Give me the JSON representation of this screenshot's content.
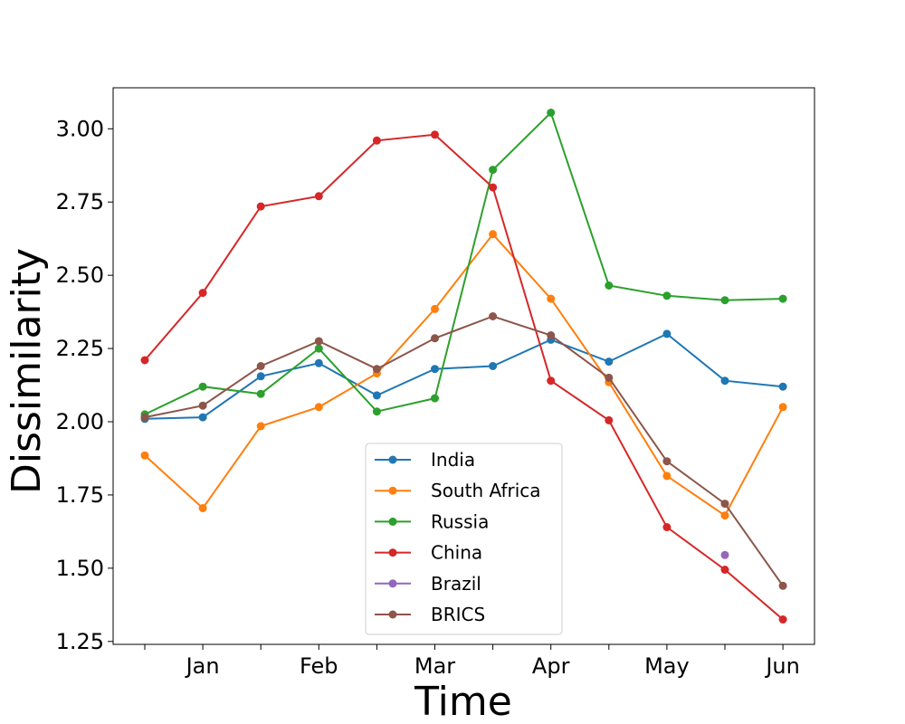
{
  "chart_data": {
    "type": "line",
    "title": "",
    "xlabel": "Time",
    "ylabel": "Dissimilarity",
    "x_tick_labels": [
      "Jan",
      "Feb",
      "Mar",
      "Apr",
      "May",
      "Jun"
    ],
    "y_tick_labels": [
      "1.25",
      "1.50",
      "1.75",
      "2.00",
      "2.25",
      "2.50",
      "2.75",
      "3.00"
    ],
    "x_points": 12,
    "ylim": [
      1.24,
      3.14
    ],
    "legend_position": "lower center",
    "grid": false,
    "series": [
      {
        "name": "India",
        "color": "#1f77b4",
        "values": [
          2.01,
          2.015,
          2.155,
          2.2,
          2.09,
          2.18,
          2.19,
          2.28,
          2.205,
          2.3,
          2.14,
          2.12
        ]
      },
      {
        "name": "South Africa",
        "color": "#ff7f0e",
        "values": [
          1.885,
          1.705,
          1.985,
          2.05,
          2.165,
          2.385,
          2.64,
          2.42,
          2.135,
          1.815,
          1.68,
          2.05
        ]
      },
      {
        "name": "Russia",
        "color": "#2ca02c",
        "values": [
          2.025,
          2.12,
          2.095,
          2.25,
          2.035,
          2.08,
          2.86,
          3.055,
          2.465,
          2.43,
          2.415,
          2.42
        ]
      },
      {
        "name": "China",
        "color": "#d62728",
        "values": [
          2.21,
          2.44,
          2.735,
          2.77,
          2.96,
          2.98,
          2.8,
          2.14,
          2.005,
          1.64,
          1.495,
          1.325
        ]
      },
      {
        "name": "Brazil",
        "color": "#9467bd",
        "values": [
          null,
          null,
          null,
          null,
          null,
          null,
          null,
          null,
          null,
          null,
          1.545,
          null
        ]
      },
      {
        "name": "BRICS",
        "color": "#8c564b",
        "values": [
          2.015,
          2.055,
          2.19,
          2.275,
          2.18,
          2.285,
          2.36,
          2.295,
          2.15,
          1.865,
          1.72,
          1.44
        ]
      }
    ]
  }
}
